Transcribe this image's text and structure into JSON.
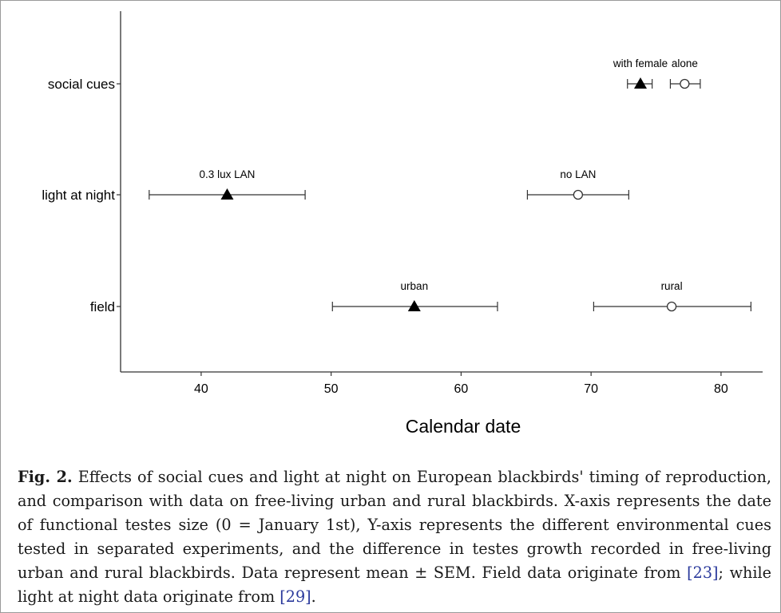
{
  "chart_data": {
    "type": "scatter",
    "subtype": "dot-with-error-bars",
    "xlabel": "Calendar date",
    "ylabel": "",
    "xlim": [
      33.8,
      83.2
    ],
    "xticks": [
      40,
      50,
      60,
      70,
      80
    ],
    "categories": [
      "social cues",
      "light at night",
      "field"
    ],
    "grid": false,
    "points": [
      {
        "category": "social cues",
        "label": "with female",
        "marker": "filled-triangle",
        "mean": 73.8,
        "lo": 72.8,
        "hi": 74.7
      },
      {
        "category": "social cues",
        "label": "alone",
        "marker": "open-circle",
        "mean": 77.2,
        "lo": 76.1,
        "hi": 78.4
      },
      {
        "category": "light at night",
        "label": "0.3 lux LAN",
        "marker": "filled-triangle",
        "mean": 42.0,
        "lo": 36.0,
        "hi": 48.0
      },
      {
        "category": "light at night",
        "label": "no LAN",
        "marker": "open-circle",
        "mean": 69.0,
        "lo": 65.1,
        "hi": 72.9
      },
      {
        "category": "field",
        "label": "urban",
        "marker": "filled-triangle",
        "mean": 56.4,
        "lo": 50.1,
        "hi": 62.8
      },
      {
        "category": "field",
        "label": "rural",
        "marker": "open-circle",
        "mean": 76.2,
        "lo": 70.2,
        "hi": 82.3
      }
    ]
  },
  "caption": {
    "fig_label": "Fig. 2.",
    "text_main": " Effects of social cues and light at night on European blackbirds' timing of reproduction, and comparison with data on free-living urban and rural blackbirds. X-axis represents the date of functional testes size (0 = January 1st), Y-axis represents the different environmental cues tested in separated experiments, and the difference in testes growth recorded in free-living urban and rural blackbirds. Data represent mean ± SEM. Field data originate from ",
    "ref1": "[23]",
    "text_mid": "; while light at night data originate from ",
    "ref2": "[29]",
    "text_end": "."
  }
}
